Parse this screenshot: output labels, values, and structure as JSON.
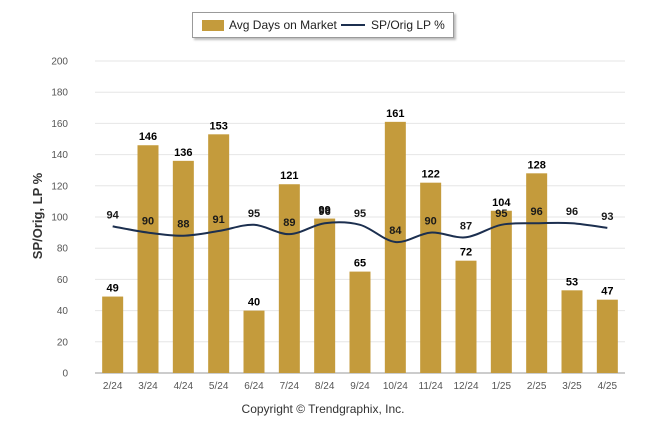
{
  "chart_data": {
    "type": "bar",
    "categories": [
      "2/24",
      "3/24",
      "4/24",
      "5/24",
      "6/24",
      "7/24",
      "8/24",
      "9/24",
      "10/24",
      "11/24",
      "12/24",
      "1/25",
      "2/25",
      "3/25",
      "4/25"
    ],
    "series": [
      {
        "name": "Avg Days on Market",
        "type": "bar",
        "color": "#c49b3c",
        "values": [
          49,
          146,
          136,
          153,
          40,
          121,
          99,
          65,
          161,
          122,
          72,
          104,
          128,
          53,
          47
        ]
      },
      {
        "name": "SP/Orig LP %",
        "type": "line",
        "color": "#1c2f4f",
        "values": [
          94,
          90,
          88,
          91,
          95,
          89,
          96,
          95,
          84,
          90,
          87,
          95,
          96,
          96,
          93
        ]
      }
    ],
    "ylabel": "SP/Orig, LP %",
    "ylim": [
      0,
      200
    ],
    "yticks": [
      0,
      20,
      40,
      60,
      80,
      100,
      120,
      140,
      160,
      180,
      200
    ],
    "grid": true,
    "legend": "top-center"
  },
  "legend": {
    "bar_label": "Avg Days on Market",
    "line_label": "SP/Orig LP %"
  },
  "footer": {
    "copyright": "Copyright © Trendgraphix, Inc."
  }
}
